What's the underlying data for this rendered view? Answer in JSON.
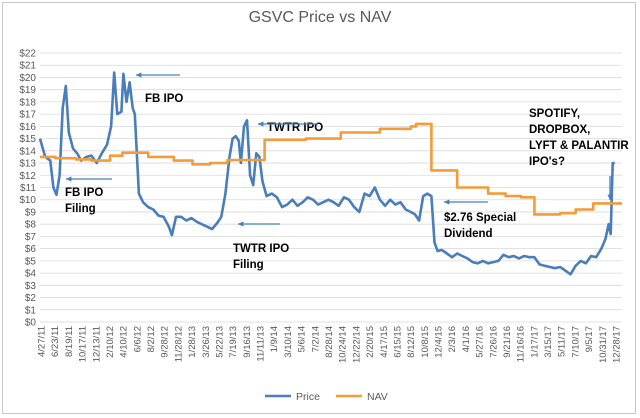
{
  "chart_data": {
    "type": "line",
    "title": "GSVC Price vs NAV",
    "xlabel": "",
    "ylabel": "",
    "ylim": [
      0,
      22
    ],
    "y_ticks": [
      "$0",
      "$1",
      "$2",
      "$3",
      "$4",
      "$5",
      "$6",
      "$7",
      "$8",
      "$9",
      "$10",
      "$11",
      "$12",
      "$13",
      "$14",
      "$15",
      "$16",
      "$17",
      "$18",
      "$19",
      "$20",
      "$21",
      "$22"
    ],
    "x_ticks": [
      "4/27/11",
      "6/23/11",
      "8/19/11",
      "10/17/11",
      "12/13/11",
      "2/10/12",
      "4/10/12",
      "6/6/12",
      "8/2/12",
      "9/28/12",
      "11/28/12",
      "1/28/13",
      "3/26/13",
      "5/22/13",
      "7/19/13",
      "9/16/13",
      "11/11/13",
      "1/9/14",
      "3/10/14",
      "5/6/14",
      "7/2/14",
      "8/28/14",
      "10/24/14",
      "12/22/14",
      "2/20/15",
      "4/17/15",
      "6/15/15",
      "8/12/15",
      "10/8/15",
      "12/4/15",
      "2/3/16",
      "4/1/16",
      "5/27/16",
      "7/26/16",
      "9/21/16",
      "11/16/16",
      "1/17/17",
      "3/15/17",
      "5/11/17",
      "7/10/17",
      "9/5/17",
      "10/31/17",
      "12/28/17"
    ],
    "legend_position": "bottom",
    "grid": true,
    "series": [
      {
        "name": "Price",
        "color": "#4a7ebb",
        "points": [
          [
            0,
            15.0
          ],
          [
            0.5,
            13.5
          ],
          [
            1,
            13.2
          ],
          [
            1.3,
            11.0
          ],
          [
            1.6,
            10.4
          ],
          [
            1.9,
            12.0
          ],
          [
            2.2,
            17.5
          ],
          [
            2.5,
            19.3
          ],
          [
            2.8,
            15.5
          ],
          [
            3.2,
            14.2
          ],
          [
            3.6,
            13.8
          ],
          [
            4.0,
            13.2
          ],
          [
            4.5,
            13.5
          ],
          [
            5.0,
            13.6
          ],
          [
            5.5,
            13.0
          ],
          [
            6.0,
            13.8
          ],
          [
            6.5,
            14.5
          ],
          [
            6.9,
            16.0
          ],
          [
            7.2,
            20.4
          ],
          [
            7.5,
            17.0
          ],
          [
            7.9,
            17.2
          ],
          [
            8.1,
            20.3
          ],
          [
            8.4,
            18.0
          ],
          [
            8.7,
            19.6
          ],
          [
            9.0,
            17.5
          ],
          [
            9.2,
            17.0
          ],
          [
            9.6,
            10.5
          ],
          [
            10.0,
            9.8
          ],
          [
            10.5,
            9.4
          ],
          [
            11.0,
            9.2
          ],
          [
            11.5,
            8.7
          ],
          [
            12.0,
            8.6
          ],
          [
            12.5,
            7.8
          ],
          [
            12.8,
            7.1
          ],
          [
            13.2,
            8.6
          ],
          [
            13.7,
            8.6
          ],
          [
            14.2,
            8.3
          ],
          [
            14.7,
            8.5
          ],
          [
            15.2,
            8.2
          ],
          [
            15.7,
            8.0
          ],
          [
            16.2,
            7.8
          ],
          [
            16.7,
            7.6
          ],
          [
            17.2,
            8.1
          ],
          [
            17.6,
            8.6
          ],
          [
            18.0,
            10.5
          ],
          [
            18.4,
            13.5
          ],
          [
            18.7,
            15.0
          ],
          [
            19.0,
            15.2
          ],
          [
            19.3,
            14.8
          ],
          [
            19.5,
            13.0
          ],
          [
            19.8,
            16.0
          ],
          [
            20.1,
            16.5
          ],
          [
            20.4,
            12.0
          ],
          [
            20.7,
            11.2
          ],
          [
            21.0,
            13.8
          ],
          [
            21.3,
            13.5
          ],
          [
            21.6,
            11.5
          ],
          [
            22.0,
            10.3
          ],
          [
            22.5,
            10.5
          ],
          [
            23.0,
            10.2
          ],
          [
            23.5,
            9.4
          ],
          [
            24.0,
            9.6
          ],
          [
            24.5,
            10.0
          ],
          [
            25.0,
            9.5
          ],
          [
            25.5,
            9.8
          ],
          [
            26.0,
            10.2
          ],
          [
            26.5,
            10.0
          ],
          [
            27.0,
            9.6
          ],
          [
            27.5,
            9.8
          ],
          [
            28.0,
            10.0
          ],
          [
            28.5,
            9.8
          ],
          [
            29.0,
            9.5
          ],
          [
            29.5,
            10.2
          ],
          [
            30.0,
            10.0
          ],
          [
            30.5,
            9.4
          ],
          [
            31.0,
            9.0
          ],
          [
            31.5,
            10.5
          ],
          [
            32.0,
            10.3
          ],
          [
            32.5,
            11.0
          ],
          [
            33.0,
            10.0
          ],
          [
            33.5,
            9.5
          ],
          [
            34.0,
            10.0
          ],
          [
            34.5,
            9.6
          ],
          [
            35.0,
            9.8
          ],
          [
            35.5,
            9.2
          ],
          [
            36.0,
            9.0
          ],
          [
            36.4,
            8.8
          ],
          [
            36.8,
            8.3
          ],
          [
            37.2,
            10.3
          ],
          [
            37.6,
            10.5
          ],
          [
            38.0,
            10.3
          ],
          [
            38.3,
            6.5
          ],
          [
            38.6,
            5.8
          ],
          [
            39.0,
            5.9
          ],
          [
            39.5,
            5.6
          ],
          [
            40.0,
            5.3
          ],
          [
            40.5,
            5.6
          ],
          [
            41.0,
            5.4
          ],
          [
            41.5,
            5.2
          ],
          [
            42.0,
            4.9
          ],
          [
            42.5,
            4.8
          ],
          [
            43.0,
            5.0
          ],
          [
            43.5,
            4.8
          ],
          [
            44.0,
            4.9
          ],
          [
            44.5,
            5.0
          ],
          [
            45.0,
            5.5
          ],
          [
            45.5,
            5.3
          ],
          [
            46.0,
            5.4
          ],
          [
            46.5,
            5.2
          ],
          [
            47.0,
            5.4
          ],
          [
            47.5,
            5.3
          ],
          [
            48.0,
            5.3
          ],
          [
            48.5,
            4.7
          ],
          [
            49.0,
            4.6
          ],
          [
            49.5,
            4.5
          ],
          [
            50.0,
            4.4
          ],
          [
            50.5,
            4.5
          ],
          [
            51.0,
            4.2
          ],
          [
            51.5,
            3.9
          ],
          [
            52.0,
            4.6
          ],
          [
            52.5,
            5.0
          ],
          [
            53.0,
            4.8
          ],
          [
            53.5,
            5.4
          ],
          [
            54.0,
            5.3
          ],
          [
            54.5,
            6.0
          ],
          [
            54.9,
            6.8
          ],
          [
            55.2,
            8.0
          ],
          [
            55.4,
            7.2
          ],
          [
            55.6,
            13.0
          ],
          [
            55.8,
            13.0
          ]
        ]
      },
      {
        "name": "NAV",
        "color": "#f39c38",
        "points": [
          [
            0,
            13.5
          ],
          [
            1.5,
            13.5
          ],
          [
            1.5,
            13.4
          ],
          [
            3.5,
            13.4
          ],
          [
            3.5,
            13.3
          ],
          [
            5.0,
            13.3
          ],
          [
            5.0,
            13.2
          ],
          [
            6.8,
            13.2
          ],
          [
            6.8,
            13.6
          ],
          [
            8.0,
            13.6
          ],
          [
            8.0,
            13.85
          ],
          [
            10.5,
            13.85
          ],
          [
            10.5,
            13.5
          ],
          [
            13.0,
            13.5
          ],
          [
            13.0,
            13.2
          ],
          [
            14.8,
            13.2
          ],
          [
            14.8,
            12.9
          ],
          [
            16.5,
            12.9
          ],
          [
            16.5,
            13.0
          ],
          [
            18.2,
            13.0
          ],
          [
            18.2,
            13.25
          ],
          [
            21.8,
            13.25
          ],
          [
            21.8,
            14.9
          ],
          [
            25.8,
            14.9
          ],
          [
            25.8,
            15.0
          ],
          [
            29.2,
            15.0
          ],
          [
            29.2,
            15.5
          ],
          [
            33.0,
            15.5
          ],
          [
            33.0,
            15.8
          ],
          [
            36.0,
            15.8
          ],
          [
            36.0,
            16.0
          ],
          [
            36.5,
            16.0
          ],
          [
            36.5,
            16.2
          ],
          [
            38.0,
            16.2
          ],
          [
            38.0,
            12.4
          ],
          [
            40.5,
            12.4
          ],
          [
            40.5,
            11.0
          ],
          [
            43.5,
            11.0
          ],
          [
            43.5,
            10.5
          ],
          [
            45.2,
            10.5
          ],
          [
            45.2,
            10.3
          ],
          [
            46.7,
            10.3
          ],
          [
            46.7,
            10.2
          ],
          [
            48.0,
            10.2
          ],
          [
            48.0,
            8.8
          ],
          [
            50.5,
            8.8
          ],
          [
            50.5,
            8.9
          ],
          [
            52.0,
            8.9
          ],
          [
            52.0,
            9.2
          ],
          [
            53.7,
            9.2
          ],
          [
            53.7,
            9.7
          ],
          [
            56.5,
            9.7
          ]
        ]
      }
    ],
    "annotations": [
      {
        "id": "fb_ipo",
        "lines": [
          "FB IPO"
        ]
      },
      {
        "id": "fb_ipo_filing",
        "lines": [
          "FB IPO",
          "Filing"
        ]
      },
      {
        "id": "twtr_ipo",
        "lines": [
          "TWTR IPO"
        ]
      },
      {
        "id": "twtr_ipo_filing",
        "lines": [
          "TWTR IPO",
          "Filing"
        ]
      },
      {
        "id": "special_dividend",
        "lines": [
          "$2.76 Special",
          "Dividend"
        ]
      },
      {
        "id": "spotify",
        "lines": [
          "SPOTIFY,",
          "DROPBOX,",
          "LYFT & PALANTIR",
          "IPO's?"
        ]
      }
    ]
  }
}
